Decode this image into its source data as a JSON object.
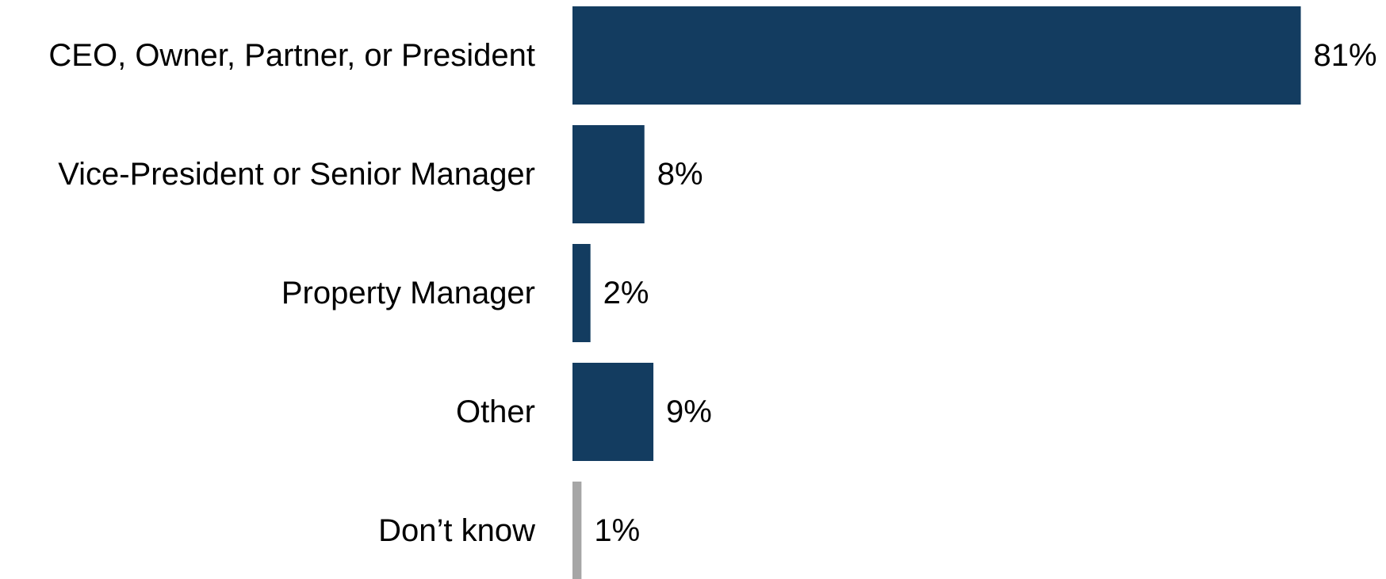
{
  "chart_data": {
    "type": "bar",
    "orientation": "horizontal",
    "categories": [
      "CEO, Owner, Partner, or President",
      "Vice-President or Senior Manager",
      "Property Manager",
      "Other",
      "Don’t know"
    ],
    "values": [
      81,
      8,
      2,
      9,
      1
    ],
    "value_labels": [
      "81%",
      "8%",
      "2%",
      "9%",
      "1%"
    ],
    "unit": "%",
    "xlim": [
      0,
      100
    ],
    "grid": false,
    "legend": "none",
    "colors": {
      "primary": "#133c60",
      "dont_know": "#a6a6a6"
    },
    "bar_colors": [
      "#133c60",
      "#133c60",
      "#133c60",
      "#133c60",
      "#a6a6a6"
    ]
  }
}
